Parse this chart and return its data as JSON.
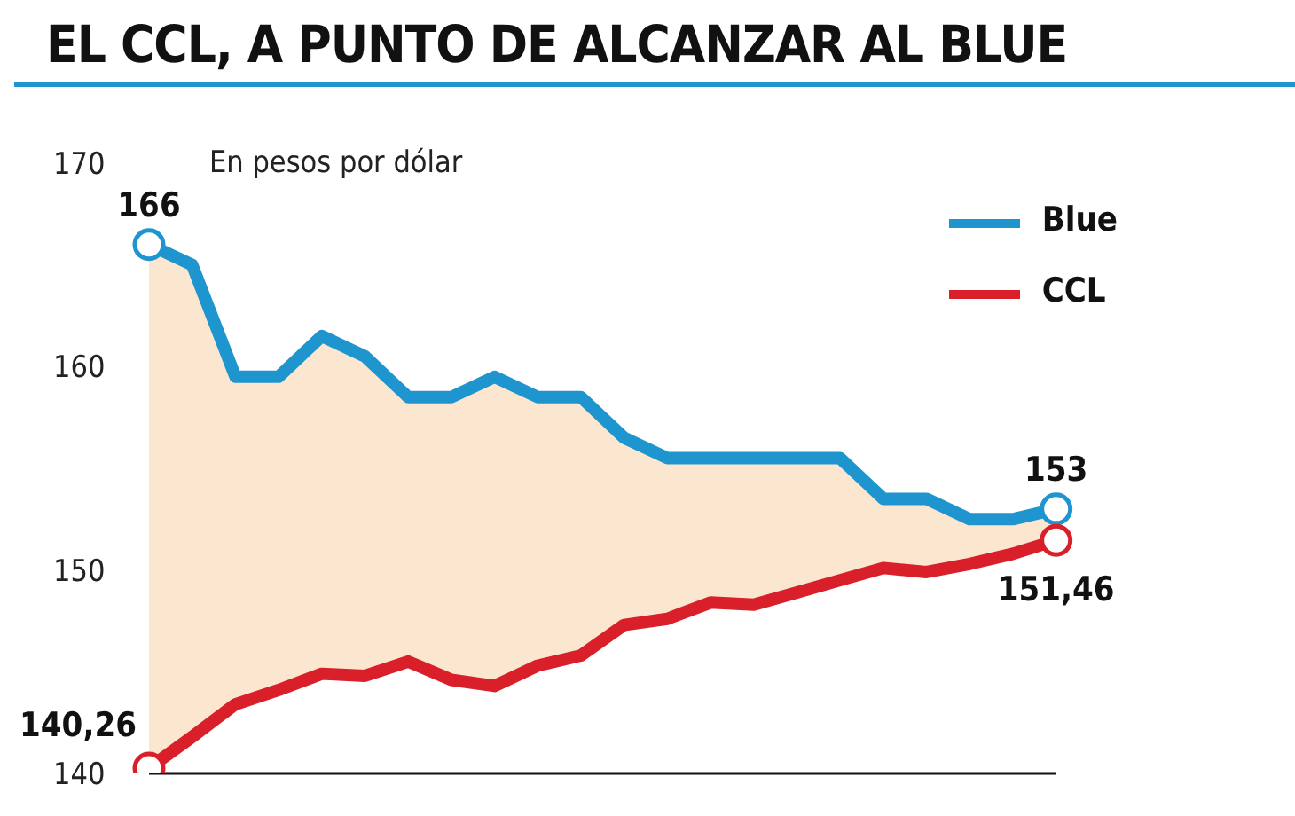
{
  "chart_data": {
    "type": "line",
    "title": "EL CCL, A PUNTO DE ALCANZAR AL BLUE",
    "subtitle": "En pesos por dólar",
    "categories": [
      null,
      null,
      null,
      null,
      null,
      null,
      null,
      null,
      null,
      null,
      null,
      null,
      null,
      null,
      null,
      null,
      null,
      null,
      null,
      null,
      null,
      null
    ],
    "series": [
      {
        "name": "Blue",
        "color": "#1f95cf",
        "values": [
          166,
          165,
          159.5,
          159.5,
          161.5,
          160.5,
          158.5,
          158.5,
          159.5,
          158.5,
          158.5,
          156.5,
          155.5,
          155.5,
          155.5,
          155.5,
          155.5,
          153.5,
          153.5,
          152.5,
          152.5,
          153
        ],
        "value_labels": [
          "166",
          null,
          null,
          null,
          null,
          null,
          null,
          null,
          null,
          null,
          null,
          null,
          null,
          null,
          null,
          null,
          null,
          null,
          null,
          null,
          null,
          "153"
        ],
        "lower": [
          140.26,
          141.8,
          143.4,
          144.1,
          144.9,
          144.8,
          145.5,
          144.6,
          144.3,
          145.3,
          145.8,
          147.3,
          147.6,
          148.4,
          148.3,
          148.9,
          149.5,
          150.1,
          149.9,
          150.3,
          150.8,
          151.46
        ],
        "upper": [
          166,
          165,
          159.5,
          159.5,
          161.5,
          160.5,
          158.5,
          158.5,
          159.5,
          158.5,
          158.5,
          156.5,
          155.5,
          155.5,
          155.5,
          155.5,
          155.5,
          153.5,
          153.5,
          152.5,
          152.5,
          153
        ]
      },
      {
        "name": "CCL",
        "color": "#d81f2a",
        "values": [
          140.26,
          141.8,
          143.4,
          144.1,
          144.9,
          144.8,
          145.5,
          144.6,
          144.3,
          145.3,
          145.8,
          147.3,
          147.6,
          148.4,
          148.3,
          148.9,
          149.5,
          150.1,
          149.9,
          150.3,
          150.8,
          151.46
        ],
        "value_labels": [
          "140,26",
          null,
          null,
          null,
          null,
          null,
          null,
          null,
          null,
          null,
          null,
          null,
          null,
          null,
          null,
          null,
          null,
          null,
          null,
          null,
          null,
          "151,46"
        ]
      }
    ],
    "ylim": [
      140,
      170
    ],
    "yticks": [
      140,
      150,
      160,
      170
    ],
    "legend": "top right",
    "tick_labels": "y",
    "marker": "none",
    "line_style": "solid"
  }
}
